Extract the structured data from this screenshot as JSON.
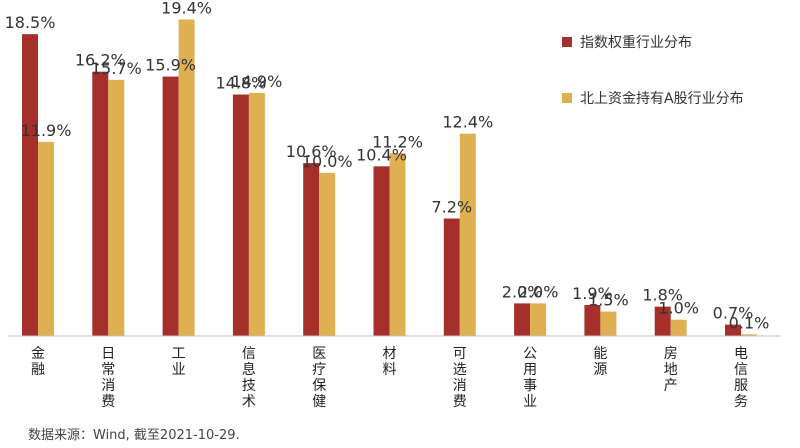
{
  "chart_data": {
    "type": "bar",
    "categories": [
      "金融",
      "日常消费",
      "工业",
      "信息技术",
      "医疗保健",
      "材料",
      "可选消费",
      "公用事业",
      "能源",
      "房地产",
      "电信服务"
    ],
    "series": [
      {
        "name": "指数权重行业分布",
        "color": "#a5302b",
        "values": [
          18.5,
          16.2,
          15.9,
          14.8,
          10.6,
          10.4,
          7.2,
          2.0,
          1.9,
          1.8,
          0.7
        ],
        "labels": [
          "18.5%",
          "16.2%",
          "15.9%",
          "14.8%",
          "10.6%",
          "10.4%",
          "7.2%",
          "2.0%",
          "1.9%",
          "1.8%",
          "0.7%"
        ]
      },
      {
        "name": "北上资金持有A股行业分布",
        "color": "#deb052",
        "values": [
          11.9,
          15.7,
          19.4,
          14.9,
          10.0,
          11.2,
          12.4,
          2.0,
          1.5,
          1.0,
          0.1
        ],
        "labels": [
          "11.9%",
          "15.7%",
          "19.4%",
          "14.9%",
          "10.0%",
          "11.2%",
          "12.4%",
          "2.0%",
          "1.5%",
          "1.0%",
          "0.1%"
        ]
      }
    ],
    "ylim": [
      0,
      20
    ],
    "grid": false,
    "legend": "top-right"
  },
  "source_note": "数据来源：Wind, 截至2021-10-29."
}
